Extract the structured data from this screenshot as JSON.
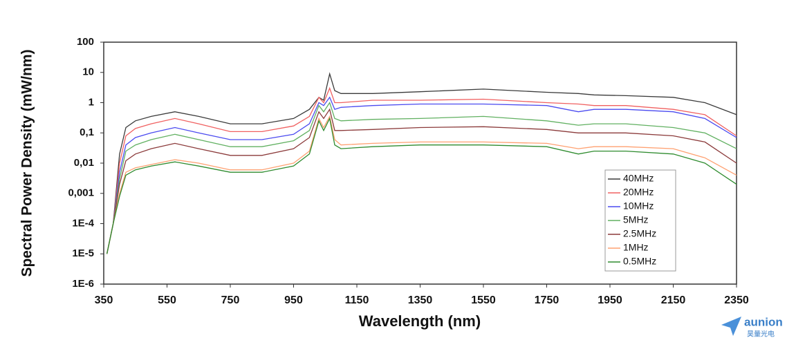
{
  "chart_data": {
    "type": "line",
    "xlabel": "Wavelength (nm)",
    "ylabel": "Spectral Power Density (mW/nm)",
    "x": [
      360,
      380,
      400,
      420,
      450,
      500,
      575,
      650,
      750,
      850,
      950,
      1000,
      1030,
      1045,
      1064,
      1080,
      1100,
      1200,
      1350,
      1550,
      1750,
      1850,
      1900,
      2000,
      2150,
      2250,
      2350
    ],
    "series": [
      {
        "name": "40MHz",
        "color": "#3a3a3a",
        "values": [
          1e-05,
          0.0001,
          0.02,
          0.15,
          0.25,
          0.35,
          0.5,
          0.35,
          0.2,
          0.2,
          0.3,
          0.6,
          1.5,
          1.2,
          9,
          2.5,
          2,
          2,
          2.3,
          2.8,
          2.2,
          2,
          1.8,
          1.7,
          1.5,
          1,
          0.4
        ]
      },
      {
        "name": "20MHz",
        "color": "#f06060",
        "values": [
          1e-05,
          0.0001,
          0.01,
          0.08,
          0.14,
          0.2,
          0.3,
          0.2,
          0.11,
          0.11,
          0.17,
          0.35,
          1.5,
          1,
          3,
          1,
          1,
          1.2,
          1.2,
          1.3,
          1,
          0.9,
          0.8,
          0.8,
          0.6,
          0.4,
          0.08
        ]
      },
      {
        "name": "10MHz",
        "color": "#4a4af0",
        "values": [
          1e-05,
          0.0001,
          0.005,
          0.04,
          0.07,
          0.1,
          0.15,
          0.1,
          0.06,
          0.06,
          0.09,
          0.2,
          1,
          0.8,
          1.5,
          0.6,
          0.7,
          0.8,
          0.9,
          0.9,
          0.8,
          0.5,
          0.6,
          0.6,
          0.5,
          0.3,
          0.07
        ]
      },
      {
        "name": "5MHz",
        "color": "#60b060",
        "values": [
          1e-05,
          0.0001,
          0.003,
          0.025,
          0.04,
          0.06,
          0.09,
          0.06,
          0.035,
          0.035,
          0.055,
          0.12,
          0.8,
          0.5,
          1,
          0.3,
          0.25,
          0.28,
          0.3,
          0.35,
          0.25,
          0.18,
          0.2,
          0.2,
          0.15,
          0.1,
          0.03
        ]
      },
      {
        "name": "2.5MHz",
        "color": "#8b3a3a",
        "values": [
          1e-05,
          0.0001,
          0.002,
          0.012,
          0.02,
          0.03,
          0.045,
          0.03,
          0.018,
          0.018,
          0.03,
          0.07,
          0.5,
          0.3,
          0.6,
          0.12,
          0.12,
          0.13,
          0.15,
          0.16,
          0.13,
          0.1,
          0.1,
          0.1,
          0.08,
          0.05,
          0.01
        ]
      },
      {
        "name": "1MHz",
        "color": "#ffa070",
        "values": [
          1e-05,
          0.0001,
          0.001,
          0.005,
          0.007,
          0.009,
          0.013,
          0.01,
          0.006,
          0.006,
          0.01,
          0.025,
          0.3,
          0.15,
          0.35,
          0.06,
          0.04,
          0.045,
          0.05,
          0.05,
          0.045,
          0.03,
          0.035,
          0.035,
          0.03,
          0.015,
          0.004
        ]
      },
      {
        "name": "0.5MHz",
        "color": "#2e8b2e",
        "values": [
          1e-05,
          0.0001,
          0.0008,
          0.004,
          0.006,
          0.008,
          0.011,
          0.008,
          0.005,
          0.005,
          0.008,
          0.02,
          0.25,
          0.12,
          0.3,
          0.04,
          0.03,
          0.035,
          0.04,
          0.04,
          0.035,
          0.02,
          0.025,
          0.025,
          0.02,
          0.01,
          0.002
        ]
      }
    ],
    "xlim": [
      350,
      2350
    ],
    "xticks": [
      350,
      550,
      750,
      950,
      1150,
      1350,
      1550,
      1750,
      1950,
      2150,
      2350
    ],
    "ylim": [
      1e-06,
      100
    ],
    "yscale": "log",
    "yticks": [
      {
        "value": 1e-06,
        "label": "1E-6"
      },
      {
        "value": 1e-05,
        "label": "1E-5"
      },
      {
        "value": 0.0001,
        "label": "1E-4"
      },
      {
        "value": 0.001,
        "label": "0,001"
      },
      {
        "value": 0.01,
        "label": "0,01"
      },
      {
        "value": 0.1,
        "label": "0,1"
      },
      1,
      10,
      100
    ],
    "grid": true,
    "legend": "lower right"
  },
  "logo": {
    "name": "aunion",
    "subtitle": "昊量光电"
  }
}
